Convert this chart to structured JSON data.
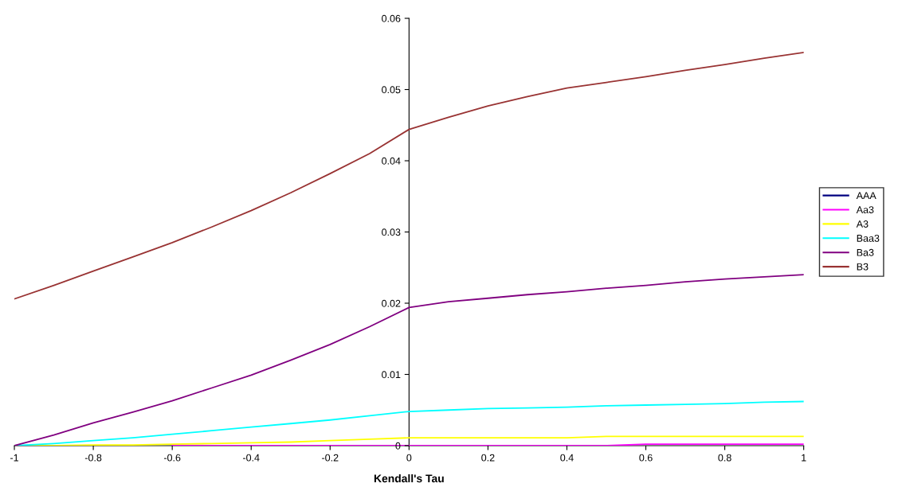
{
  "chart_data": {
    "type": "line",
    "xlabel": "Kendall's Tau",
    "x": [
      -1,
      -0.9,
      -0.8,
      -0.7,
      -0.6,
      -0.5,
      -0.4,
      -0.3,
      -0.2,
      -0.1,
      0,
      0.1,
      0.2,
      0.3,
      0.4,
      0.5,
      0.6,
      0.7,
      0.8,
      0.9,
      1
    ],
    "series": [
      {
        "name": "AAA",
        "color": "#000080",
        "values": [
          null,
          null,
          null,
          null,
          null,
          null,
          null,
          null,
          null,
          null,
          null,
          null,
          null,
          null,
          null,
          null,
          null,
          null,
          null,
          null,
          null
        ]
      },
      {
        "name": "Aa3",
        "color": "#ff00ff",
        "values": [
          null,
          null,
          null,
          null,
          0,
          0,
          0,
          0,
          0,
          0,
          0,
          0,
          0,
          0,
          0,
          0,
          0.0002,
          0.0002,
          0.0002,
          0.0002,
          0.0002
        ]
      },
      {
        "name": "A3",
        "color": "#ffff00",
        "values": [
          0,
          0,
          0.0001,
          0.0001,
          0.0002,
          0.0003,
          0.0004,
          0.0005,
          0.0007,
          0.0009,
          0.0011,
          0.0011,
          0.0011,
          0.0011,
          0.0011,
          0.0013,
          0.0013,
          0.0013,
          0.0013,
          0.0013,
          0.0013
        ]
      },
      {
        "name": "Baa3",
        "color": "#00ffff",
        "values": [
          0,
          0.0003,
          0.0007,
          0.0011,
          0.0016,
          0.0021,
          0.0026,
          0.0031,
          0.0036,
          0.0042,
          0.0048,
          0.005,
          0.0052,
          0.0053,
          0.0054,
          0.0056,
          0.0057,
          0.0058,
          0.0059,
          0.0061,
          0.0062
        ]
      },
      {
        "name": "Ba3",
        "color": "#800080",
        "values": [
          0,
          0.0015,
          0.0032,
          0.0047,
          0.0063,
          0.0081,
          0.0099,
          0.012,
          0.0142,
          0.0167,
          0.0194,
          0.0202,
          0.0207,
          0.0212,
          0.0216,
          0.0221,
          0.0225,
          0.023,
          0.0234,
          0.0237,
          0.024
        ]
      },
      {
        "name": "B3",
        "color": "#993333",
        "values": [
          0.0206,
          0.0225,
          0.0245,
          0.0265,
          0.0285,
          0.0307,
          0.033,
          0.0355,
          0.0382,
          0.041,
          0.0444,
          0.0461,
          0.0477,
          0.049,
          0.0502,
          0.051,
          0.0518,
          0.0527,
          0.0535,
          0.0544,
          0.0552
        ]
      }
    ],
    "xlim": [
      -1,
      1
    ],
    "xticks": [
      -1,
      -0.8,
      -0.6,
      -0.4,
      -0.2,
      0,
      0.2,
      0.4,
      0.6,
      0.8,
      1
    ],
    "ylim": [
      0,
      0.06
    ],
    "yticks": [
      0,
      0.01,
      0.02,
      0.03,
      0.04,
      0.05,
      0.06
    ],
    "grid": false,
    "legend": "right",
    "marker": "none",
    "line_style": "solid"
  }
}
